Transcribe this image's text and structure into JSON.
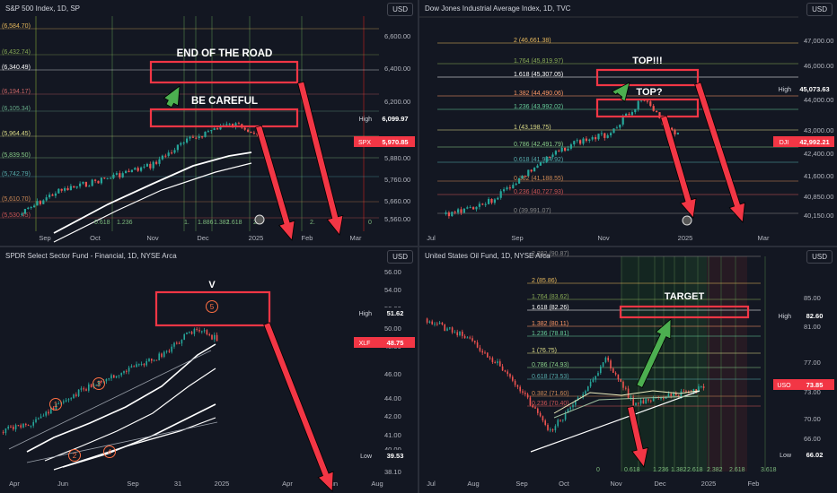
{
  "colors": {
    "bg": "#131722",
    "text": "#d1d4dc",
    "axis_text": "#b2b5be",
    "up": "#26a69a",
    "down": "#ef5350",
    "annot_red": "#f23645",
    "annot_green": "#4caf50",
    "ma": "#ffffff",
    "fib_green": "#1b5e20",
    "fib_red": "#7f1d1d"
  },
  "chart_data": [
    {
      "id": "spx",
      "type": "line",
      "title": "S&P 500 Index, 1D, SP",
      "currency": "USD",
      "y_ticks": [
        "6,600.00",
        "6,400.00",
        "6,200.00",
        "6,000.00",
        "5,880.00",
        "5,760.00",
        "5,660.00",
        "5,560.00"
      ],
      "x_ticks": [
        "Sep",
        "Oct",
        "Nov",
        "Dec",
        "2025",
        "Feb",
        "Mar"
      ],
      "fib_left": [
        "(6,584.70)",
        "(6,432.74)",
        "(6,340.49)",
        "(6,194.17)",
        "(6,105.34)",
        "(5,964.45)",
        "(5,839.50)",
        "(5,742.79)",
        "(5,610.70)",
        "(5,530.45)"
      ],
      "fib_bottom": [
        "0.618",
        "1.236",
        "1.",
        "1.886",
        "1.382",
        "1.618",
        "2.",
        "2.",
        "0"
      ],
      "badges": [
        {
          "label": "High",
          "value": "6,099.97",
          "kind": "high"
        },
        {
          "label": "SPX",
          "value": "5,970.85",
          "kind": "last"
        }
      ],
      "annotations": [
        "END OF THE ROAD",
        "BE CAREFUL"
      ],
      "price": {
        "dates": [
          "Aug",
          "Sep",
          "Oct",
          "Nov",
          "Dec",
          "Jan"
        ],
        "values": [
          5530,
          5650,
          5750,
          5900,
          6080,
          5970
        ]
      }
    },
    {
      "id": "dji",
      "type": "line",
      "title": "Dow Jones Industrial Average Index, 1D, TVC",
      "currency": "USD",
      "y_ticks": [
        "47,000.00",
        "46,000.00",
        "44,000.00",
        "43,000.00",
        "42,400.00",
        "41,600.00",
        "40,850.00",
        "40,150.00"
      ],
      "x_ticks": [
        "Jul",
        "Sep",
        "Nov",
        "2025",
        "Mar"
      ],
      "fibs": [
        "2 (46,661.38)",
        "1.764 (45,819.97)",
        "1.618 (45,307.05)",
        "1.382 (44,490.06)",
        "1.236 (43,992.02)",
        "1 (43,198.75)",
        "0.786 (42,491.79)",
        "0.618 (41,944.92)",
        "0.382 (41,188.55)",
        "0.236 (40,727.93)",
        "0 (39,991.07)"
      ],
      "badges": [
        {
          "label": "High",
          "value": "45,073.63",
          "kind": "high"
        },
        {
          "label": "DJI",
          "value": "42,992.21",
          "kind": "last"
        }
      ],
      "annotations": [
        "TOP!!!",
        "TOP?"
      ],
      "price": {
        "dates": [
          "Jul",
          "Sep",
          "Nov",
          "Jan"
        ],
        "values": [
          39500,
          41000,
          44500,
          42992
        ]
      }
    },
    {
      "id": "xlf",
      "type": "line",
      "title": "SPDR Select Sector Fund - Financial, 1D, NYSE Arca",
      "currency": "USD",
      "y_ticks": [
        "56.00",
        "54.00",
        "52.00",
        "50.00",
        "48.00",
        "46.00",
        "44.00",
        "42.00",
        "41.00",
        "40.00",
        "38.10"
      ],
      "x_ticks": [
        "Apr",
        "Jun",
        "Sep",
        "31",
        "2025",
        "Apr",
        "Jun",
        "Aug"
      ],
      "waves": [
        "1",
        "2",
        "3",
        "4",
        "5"
      ],
      "badges": [
        {
          "label": "High",
          "value": "51.62",
          "kind": "high"
        },
        {
          "label": "XLF",
          "value": "48.75",
          "kind": "last"
        },
        {
          "label": "Low",
          "value": "39.53",
          "kind": "low"
        }
      ],
      "annotations": [
        "V"
      ],
      "price": {
        "dates": [
          "Apr",
          "Jun",
          "Sep",
          "Dec",
          "Jan"
        ],
        "values": [
          39.6,
          42.5,
          45.0,
          51.6,
          48.75
        ]
      }
    },
    {
      "id": "uso",
      "type": "line",
      "title": "United States Oil Fund, 1D, NYSE Arca",
      "currency": "USD",
      "y_ticks": [
        "85.00",
        "81.00",
        "77.00",
        "73.00",
        "70.00",
        "66.00",
        "62.00"
      ],
      "x_ticks": [
        "Jul",
        "Aug",
        "Sep",
        "Oct",
        "Nov",
        "Dec",
        "2025",
        "Feb"
      ],
      "fibs": [
        "2.382 (90.87)",
        "2 (85.86)",
        "1.764 (83.62)",
        "1.618 (82.26)",
        "1.382 (80.11)",
        "1.236 (78.81)",
        "1 (76.75)",
        "0.786 (74.93)",
        "0.618 (73.53)",
        "0.382 (71.60)",
        "0.236 (70.40)"
      ],
      "fib_bottom": [
        "0",
        "0.618",
        "1.236",
        "1.382",
        "2.618",
        "2.382",
        "2.618",
        "3.618"
      ],
      "badges": [
        {
          "label": "High",
          "value": "82.60",
          "kind": "high"
        },
        {
          "label": "USO",
          "value": "73.85",
          "kind": "last"
        },
        {
          "label": "Low",
          "value": "66.02",
          "kind": "low"
        }
      ],
      "annotations": [
        "TARGET"
      ],
      "price": {
        "dates": [
          "Jul",
          "Aug",
          "Sep",
          "Oct",
          "Nov",
          "Dec",
          "Jan"
        ],
        "values": [
          80,
          75,
          67,
          72,
          71,
          72,
          73.85
        ]
      }
    }
  ]
}
